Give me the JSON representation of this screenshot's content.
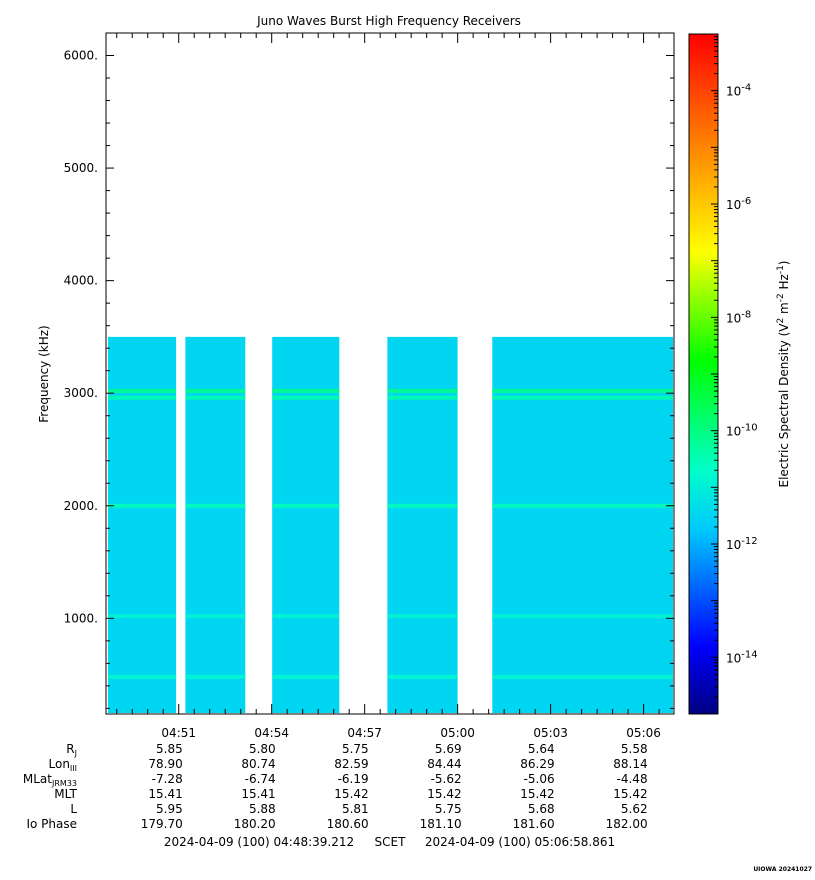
{
  "chart_data": {
    "type": "heatmap",
    "title": "Juno Waves Burst High Frequency Receivers",
    "ylabel": "Frequency (kHz)",
    "ylim": [
      150,
      6200
    ],
    "y_ticks": [
      {
        "value": 1000,
        "label": "1000."
      },
      {
        "value": 2000,
        "label": "2000."
      },
      {
        "value": 3000,
        "label": "3000."
      },
      {
        "value": 4000,
        "label": "4000."
      },
      {
        "value": 5000,
        "label": "5000."
      },
      {
        "value": 6000,
        "label": "6000."
      }
    ],
    "colorbar": {
      "label": "Electric Spectral Density (V",
      "label_sup1": "2",
      "label_mid": " m",
      "label_sup2": "-2",
      "label_mid2": " Hz",
      "label_sup3": "-1",
      "label_end": ")",
      "scale": "log",
      "range_exp": [
        -15,
        -3
      ],
      "ticks": [
        {
          "exp": -4,
          "base": "10",
          "sup": "-4"
        },
        {
          "exp": -6,
          "base": "10",
          "sup": "-6"
        },
        {
          "exp": -8,
          "base": "10",
          "sup": "-8"
        },
        {
          "exp": -10,
          "base": "10",
          "sup": "-10"
        },
        {
          "exp": -12,
          "base": "10",
          "sup": "-12"
        },
        {
          "exp": -14,
          "base": "10",
          "sup": "-14"
        }
      ]
    },
    "x_start": "04:48:39.212",
    "x_end": "05:06:58.861",
    "x_ticks": [
      "04:51",
      "04:54",
      "04:57",
      "05:00",
      "05:03",
      "05:06"
    ],
    "data_gaps": [
      [
        "04:50:55",
        "04:51:13"
      ],
      [
        "04:53:09",
        "04:54:01"
      ],
      [
        "04:56:11",
        "04:57:44"
      ],
      [
        "05:00:00",
        "05:01:07"
      ]
    ],
    "data_max_frequency_khz": 3500,
    "background_level_exp": -11.5,
    "emission_lines": [
      {
        "frequency_khz": 3020,
        "level_exp": -10.0
      },
      {
        "frequency_khz": 2960,
        "level_exp": -10.4
      },
      {
        "frequency_khz": 2000,
        "level_exp": -10.5
      },
      {
        "frequency_khz": 1020,
        "level_exp": -10.9
      },
      {
        "frequency_khz": 480,
        "level_exp": -10.8
      }
    ]
  },
  "ephemeris": {
    "rows": [
      {
        "label": "R",
        "sub": "J",
        "values": [
          "5.85",
          "5.80",
          "5.75",
          "5.69",
          "5.64",
          "5.58"
        ]
      },
      {
        "label": "Lon",
        "sub": "III",
        "values": [
          "78.90",
          "80.74",
          "82.59",
          "84.44",
          "86.29",
          "88.14"
        ]
      },
      {
        "label": "MLat",
        "sub": "JRM33",
        "values": [
          "-7.28",
          "-6.74",
          "-6.19",
          "-5.62",
          "-5.06",
          "-4.48"
        ]
      },
      {
        "label": "MLT",
        "sub": "",
        "values": [
          "15.41",
          "15.41",
          "15.42",
          "15.42",
          "15.42",
          "15.42"
        ]
      },
      {
        "label": "L",
        "sub": "",
        "values": [
          "5.95",
          "5.88",
          "5.81",
          "5.75",
          "5.68",
          "5.62"
        ]
      },
      {
        "label": "Io Phase",
        "sub": "",
        "values": [
          "179.70",
          "180.20",
          "180.60",
          "181.10",
          "181.60",
          "182.00"
        ]
      }
    ]
  },
  "footer": {
    "start_label": "2024-04-09 (100) 04:48:39.212",
    "middle_label": "SCET",
    "end_label": "2024-04-09 (100) 05:06:58.861"
  },
  "version_stamp": "UIOWA 20241027"
}
